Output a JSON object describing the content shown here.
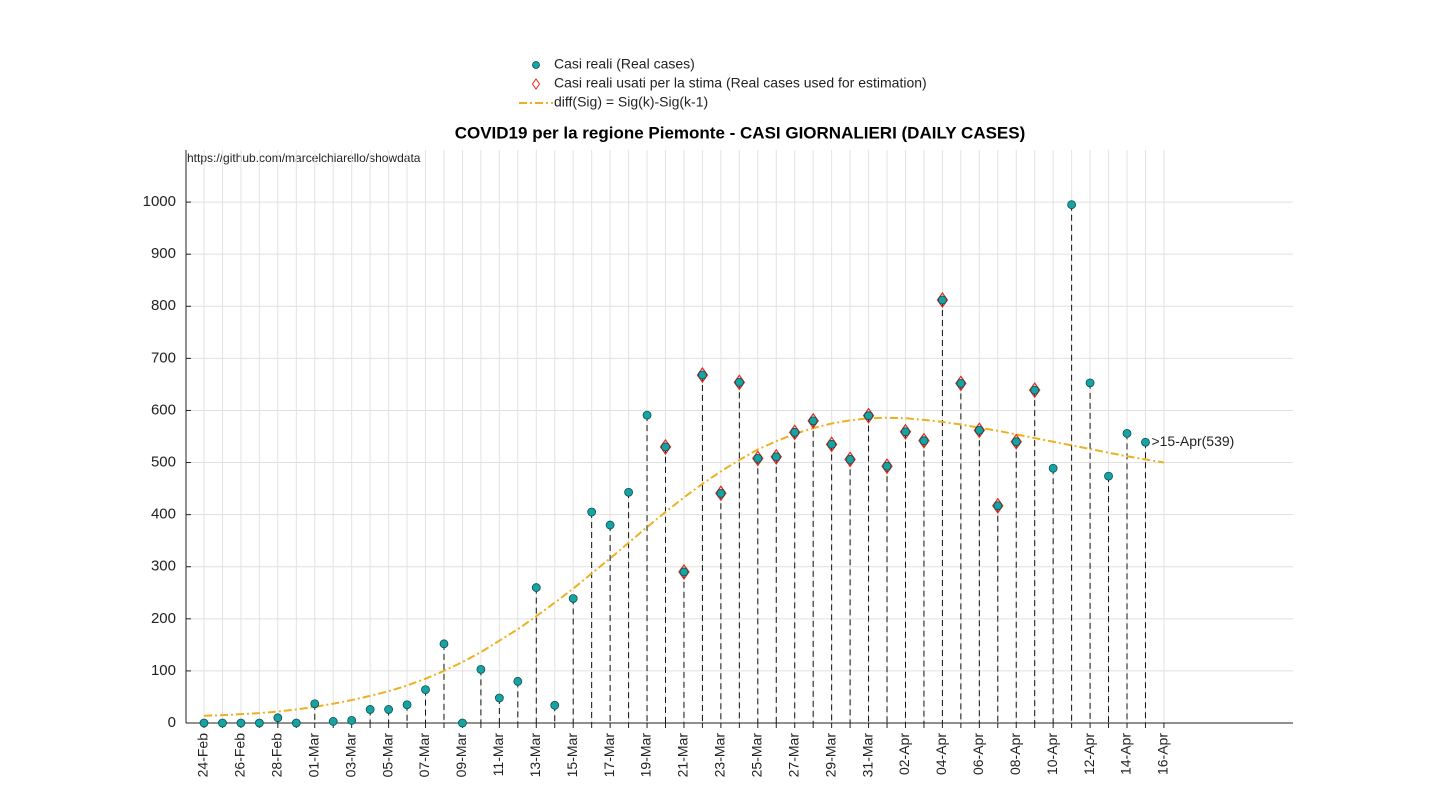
{
  "chart_data": {
    "type": "line",
    "title": "COVID19 per la regione Piemonte - CASI GIORNALIERI (DAILY CASES)",
    "source_note": "https://github.com/marcelchiarello/showdata",
    "annotation": ">15-Apr(539)",
    "categories": [
      "24-Feb",
      null,
      "26-Feb",
      null,
      "28-Feb",
      null,
      "01-Mar",
      null,
      "03-Mar",
      null,
      "05-Mar",
      null,
      "07-Mar",
      null,
      "09-Mar",
      null,
      "11-Mar",
      null,
      "13-Mar",
      null,
      "15-Mar",
      null,
      "17-Mar",
      null,
      "19-Mar",
      null,
      "21-Mar",
      null,
      "23-Mar",
      null,
      "25-Mar",
      null,
      "27-Mar",
      null,
      "29-Mar",
      null,
      "31-Mar",
      null,
      "02-Apr",
      null,
      "04-Apr",
      null,
      "06-Apr",
      null,
      "08-Apr",
      null,
      "10-Apr",
      null,
      "12-Apr",
      null,
      "14-Apr",
      null,
      "16-Apr"
    ],
    "series": [
      {
        "name": "Casi reali (Real cases)",
        "color": "#17a3a3",
        "marker": "circle",
        "values": [
          0,
          0,
          0,
          0,
          10,
          0,
          37,
          3,
          5,
          26,
          26,
          35,
          64,
          152,
          0,
          103,
          48,
          80,
          260,
          34,
          239,
          405,
          380,
          443,
          591,
          530,
          290,
          668,
          441,
          654,
          508,
          511,
          558,
          580,
          535,
          506,
          590,
          493,
          559,
          542,
          812,
          652,
          562,
          417,
          540,
          639,
          489,
          995,
          653,
          474,
          556,
          539,
          null
        ]
      },
      {
        "name": "Casi reali usati per la stima (Real cases used for estimation)",
        "color": "#e8261c",
        "marker": "diamond",
        "values": [
          null,
          null,
          null,
          null,
          null,
          null,
          null,
          null,
          null,
          null,
          null,
          null,
          null,
          null,
          null,
          null,
          null,
          null,
          null,
          null,
          null,
          null,
          null,
          null,
          null,
          530,
          290,
          668,
          441,
          654,
          508,
          511,
          558,
          580,
          535,
          506,
          590,
          493,
          559,
          542,
          812,
          652,
          562,
          417,
          540,
          639,
          null,
          null,
          null,
          null,
          null,
          null,
          null
        ]
      },
      {
        "name": "diff(Sig) = Sig(k)-Sig(k-1)",
        "color": "#edb120",
        "marker": "dashdot",
        "values": [
          14,
          15,
          17,
          19,
          22,
          26,
          31,
          37,
          44,
          52,
          61,
          72,
          85,
          100,
          117,
          136,
          158,
          180,
          205,
          231,
          258,
          287,
          316,
          346,
          376,
          405,
          433,
          459,
          483,
          505,
          525,
          541,
          555,
          566,
          575,
          581,
          585,
          586,
          585,
          582,
          578,
          573,
          567,
          561,
          554,
          547,
          540,
          533,
          526,
          519,
          512,
          506,
          500
        ]
      }
    ],
    "ylim": [
      0,
      1100
    ],
    "yticks": [
      0,
      100,
      200,
      300,
      400,
      500,
      600,
      700,
      800,
      900,
      1000
    ],
    "grid": true,
    "legend": "top"
  }
}
